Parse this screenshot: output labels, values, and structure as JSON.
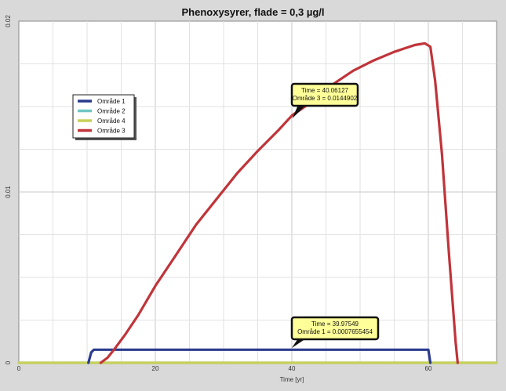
{
  "chart_data": {
    "type": "line",
    "title": "Phenoxysyrer, flade = 0,3 µg/l",
    "xlabel": "Time [yr]",
    "ylabel": "",
    "xlim": [
      0,
      70
    ],
    "ylim": [
      0,
      0.02
    ],
    "x_ticks": [
      "0",
      "20",
      "40",
      "60"
    ],
    "y_ticks": [
      "0",
      "0.01",
      "0.02"
    ],
    "grid": true,
    "legend_position": "left",
    "series": [
      {
        "name": "Område 1",
        "color": "#2b3b8e",
        "x": [
          10.2,
          10.6,
          11.0,
          20,
          30,
          39.97549,
          50,
          60.0,
          60.3
        ],
        "y": [
          0.0,
          0.0006,
          0.0007655454,
          0.0007655454,
          0.0007655454,
          0.0007655454,
          0.0007655454,
          0.0007655454,
          0.0
        ]
      },
      {
        "name": "Område 2",
        "color": "#6fc6c6",
        "x": [
          0,
          70
        ],
        "y": [
          0,
          0
        ]
      },
      {
        "name": "Område 4",
        "color": "#c8d15a",
        "x": [
          0,
          70
        ],
        "y": [
          0,
          0
        ]
      },
      {
        "name": "Område 3",
        "color": "#c0343a",
        "x": [
          12.0,
          13.0,
          14.0,
          15.5,
          17.5,
          20,
          23,
          26,
          29,
          32,
          35,
          38,
          40.06127,
          43,
          46,
          49,
          52,
          55,
          58,
          59.5,
          60.3,
          61.0,
          62.0,
          63.0,
          64.0,
          64.3
        ],
        "y": [
          0.0,
          0.0003,
          0.0008,
          0.0016,
          0.0028,
          0.0045,
          0.0063,
          0.0081,
          0.0096,
          0.0111,
          0.0124,
          0.0136,
          0.0144902,
          0.0153,
          0.0163,
          0.0171,
          0.0177,
          0.0182,
          0.0186,
          0.0187,
          0.0185,
          0.0165,
          0.0122,
          0.0065,
          0.0012,
          0.0
        ]
      }
    ],
    "annotations": [
      {
        "name": "tip-omrade-3",
        "line1": "Time = 40.06127",
        "line2": "Område 3 = 0.0144902",
        "x": 40.06127,
        "y": 0.0144902
      },
      {
        "name": "tip-omrade-1",
        "line1": "Time = 39.97549",
        "line2": "Område 1 = 0.0007655454",
        "x": 39.97549,
        "y": 0.0007655454
      }
    ]
  }
}
